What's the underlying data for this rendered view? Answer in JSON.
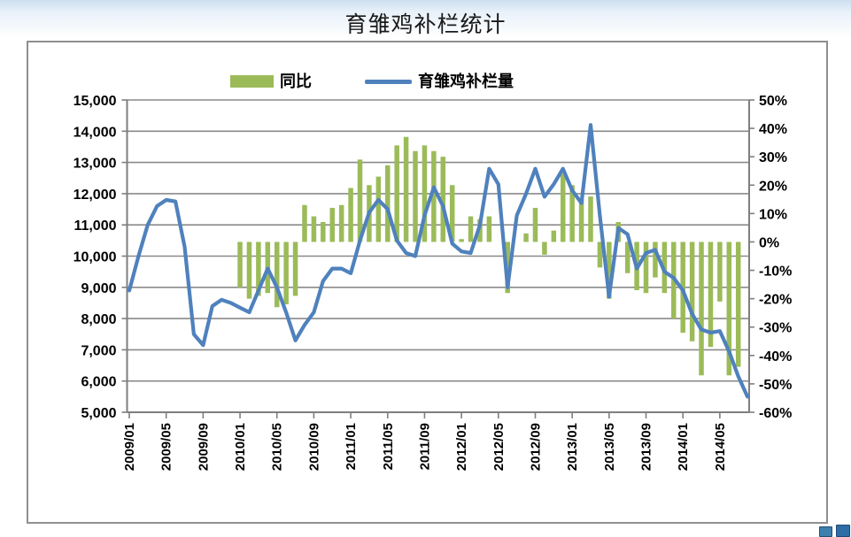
{
  "page": {
    "title": "育雏鸡补栏统计"
  },
  "legend": {
    "items": [
      {
        "label": "同比",
        "type": "bar",
        "color": "#9bbb59"
      },
      {
        "label": "育雏鸡补栏量",
        "type": "line",
        "color": "#4f81bd"
      }
    ]
  },
  "chart_data": {
    "type": "combo",
    "title": "育雏鸡补栏统计",
    "x": [
      "2009/01",
      "2009/02",
      "2009/03",
      "2009/04",
      "2009/05",
      "2009/06",
      "2009/07",
      "2009/08",
      "2009/09",
      "2009/10",
      "2009/11",
      "2009/12",
      "2010/01",
      "2010/02",
      "2010/03",
      "2010/04",
      "2010/05",
      "2010/06",
      "2010/07",
      "2010/08",
      "2010/09",
      "2010/10",
      "2010/11",
      "2010/12",
      "2011/01",
      "2011/02",
      "2011/03",
      "2011/04",
      "2011/05",
      "2011/06",
      "2011/07",
      "2011/08",
      "2011/09",
      "2011/10",
      "2011/11",
      "2011/12",
      "2012/01",
      "2012/02",
      "2012/03",
      "2012/04",
      "2012/05",
      "2012/06",
      "2012/07",
      "2012/08",
      "2012/09",
      "2012/10",
      "2012/11",
      "2012/12",
      "2013/01",
      "2013/02",
      "2013/03",
      "2013/04",
      "2013/05",
      "2013/06",
      "2013/07",
      "2013/08",
      "2013/09",
      "2013/10",
      "2013/11",
      "2013/12",
      "2014/01",
      "2014/02",
      "2014/03",
      "2014/04",
      "2014/05",
      "2014/06",
      "2014/07",
      "2014/08"
    ],
    "x_tick_labels": [
      "2009/01",
      "2009/05",
      "2009/09",
      "2010/01",
      "2010/05",
      "2010/09",
      "2011/01",
      "2011/05",
      "2011/09",
      "2012/01",
      "2012/05",
      "2012/09",
      "2013/01",
      "2013/05",
      "2013/09",
      "2014/01",
      "2014/05"
    ],
    "x_tick_interval": 4,
    "series": [
      {
        "name": "同比",
        "type": "bar",
        "axis": "right",
        "unit": "%",
        "color": "#9bbb59",
        "values": [
          null,
          null,
          null,
          null,
          null,
          null,
          null,
          null,
          null,
          null,
          null,
          null,
          -16,
          -20,
          -19,
          -18,
          -23,
          -22,
          -19,
          13,
          9,
          7,
          12,
          13,
          19,
          29,
          20,
          23,
          27,
          34,
          37,
          32,
          34,
          32,
          30,
          20,
          1,
          9,
          8,
          9,
          0,
          -18,
          0,
          3,
          12,
          -4.5,
          4,
          24,
          20,
          15,
          16,
          -9,
          -20,
          7,
          -11,
          -17,
          -18,
          -12.5,
          -18,
          -27,
          -32,
          -35,
          -47,
          -37,
          -21,
          -47,
          -44,
          null
        ]
      },
      {
        "name": "育雏鸡补栏量",
        "type": "line",
        "axis": "left",
        "color": "#4f81bd",
        "values": [
          8900,
          10000,
          11000,
          11600,
          11800,
          11750,
          10300,
          7500,
          7150,
          8400,
          8600,
          8500,
          8350,
          8200,
          8900,
          9600,
          9000,
          8200,
          7300,
          7800,
          8200,
          9200,
          9600,
          9600,
          9450,
          10500,
          11400,
          11800,
          11500,
          10500,
          10100,
          10000,
          11300,
          12200,
          11600,
          10400,
          10150,
          10100,
          11000,
          12800,
          12300,
          9000,
          11300,
          12000,
          12800,
          11900,
          12300,
          12800,
          12100,
          11700,
          14200,
          11300,
          8700,
          10900,
          10700,
          9600,
          10100,
          10200,
          9500,
          9300,
          8900,
          8150,
          7650,
          7550,
          7600,
          6950,
          6150,
          5500
        ]
      }
    ],
    "axes": {
      "left": {
        "min": 5000,
        "max": 15000,
        "step": 1000,
        "labels": [
          "15,000",
          "14,000",
          "13,000",
          "12,000",
          "11,000",
          "10,000",
          "9,000",
          "8,000",
          "7,000",
          "6,000",
          "5,000"
        ]
      },
      "right": {
        "min": -60,
        "max": 50,
        "step": 10,
        "labels": [
          "50%",
          "40%",
          "30%",
          "20%",
          "10%",
          "0%",
          "-10%",
          "-20%",
          "-30%",
          "-40%",
          "-50%",
          "-60%"
        ]
      }
    },
    "grid": "horizontal-only",
    "legend_position": "top-center",
    "colors": {
      "grid": "#8a8a8a",
      "axis": "#7f7f7f",
      "text": "#000000"
    }
  }
}
